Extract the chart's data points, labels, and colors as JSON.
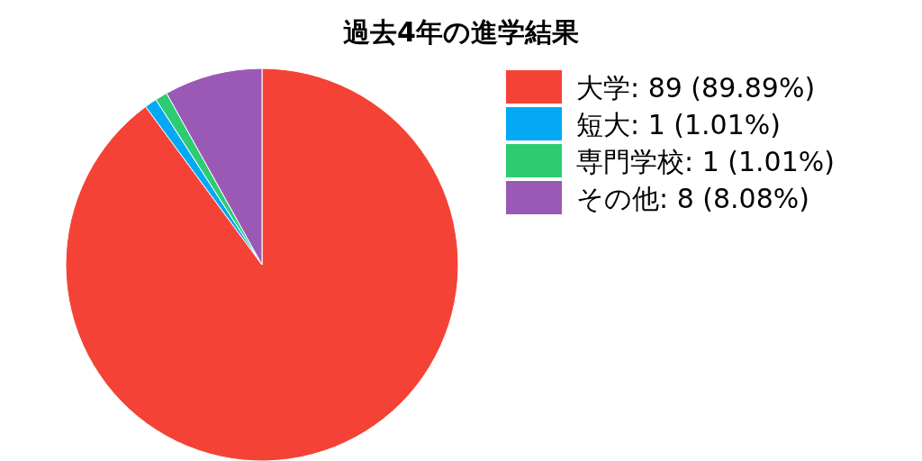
{
  "chart_data": {
    "type": "pie",
    "title": "過去4年の進学結果",
    "categories": [
      "大学",
      "短大",
      "専門学校",
      "その他"
    ],
    "values": [
      89,
      1,
      1,
      8
    ],
    "value_labels": [
      "89 (89.89%)",
      "1 (1.01%)",
      "1 (1.01%)",
      "8 (8.08%)"
    ],
    "colors": [
      "#f44336",
      "#03a9f4",
      "#2ecc71",
      "#9b59b6"
    ],
    "legend": "right"
  }
}
